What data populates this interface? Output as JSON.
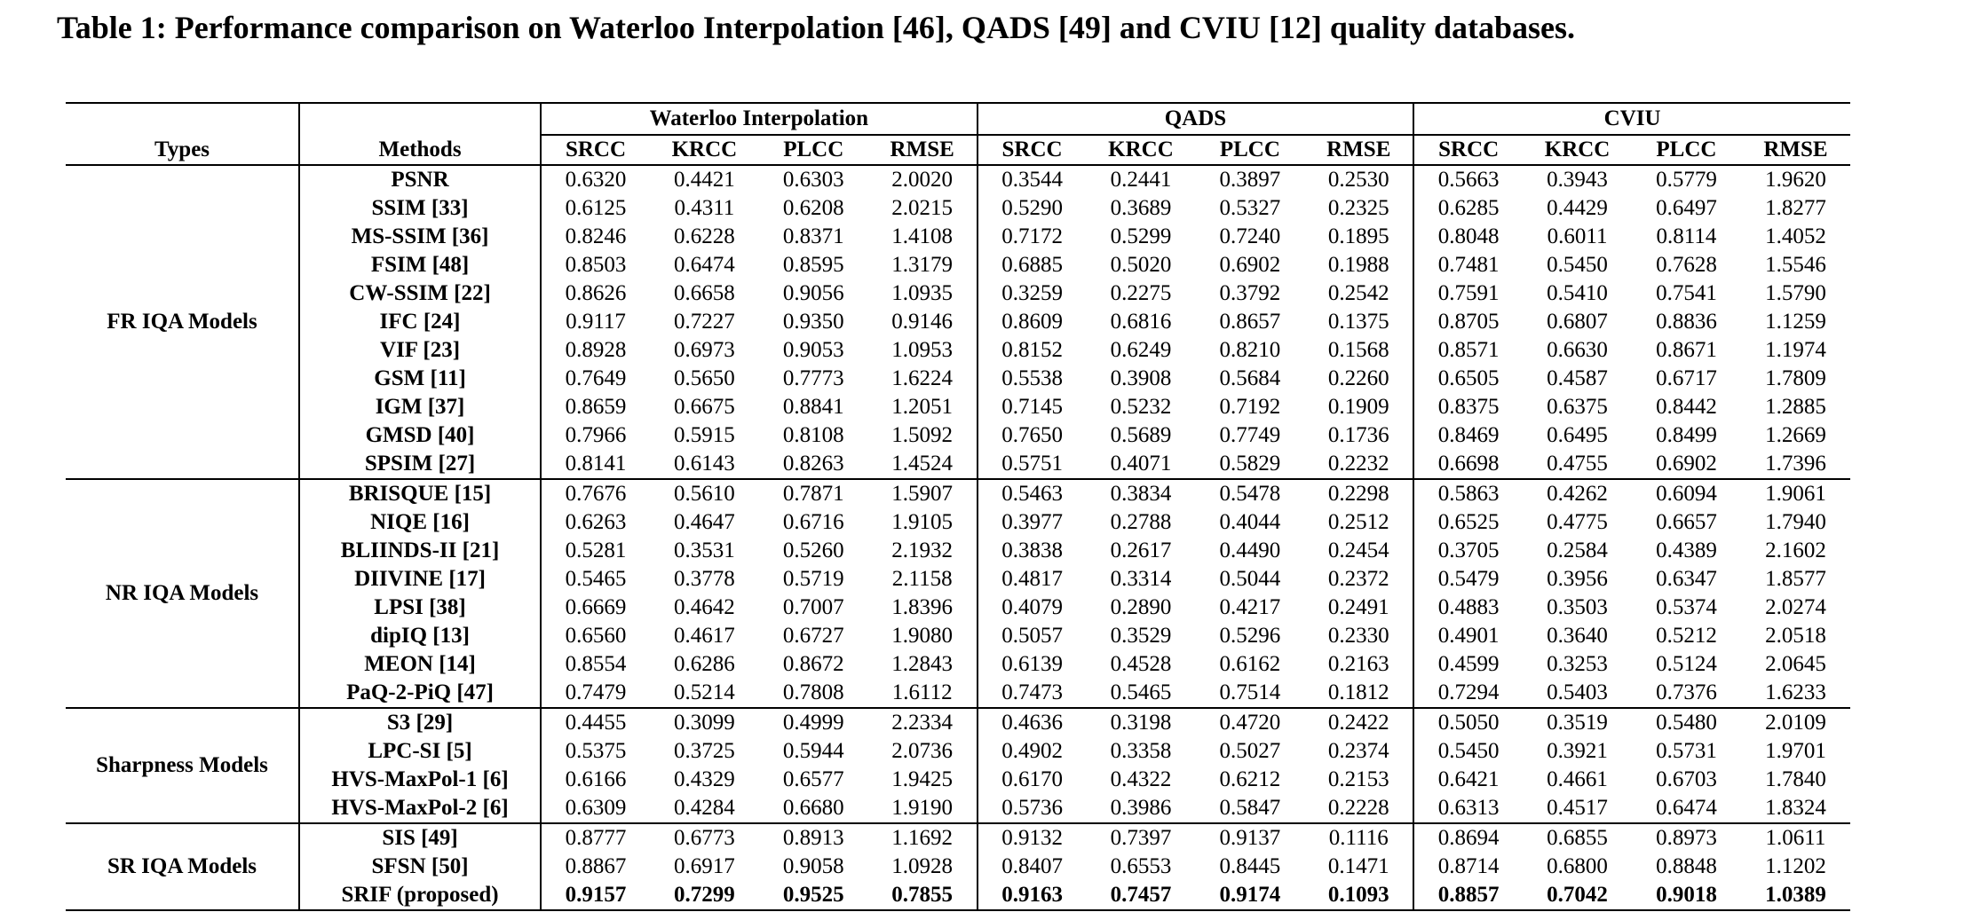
{
  "caption": "Table 1: Performance comparison on Waterloo Interpolation [46], QADS [49] and CVIU [12] quality databases.",
  "headers": {
    "types": "Types",
    "methods": "Methods",
    "groups": [
      "Waterloo Interpolation",
      "QADS",
      "CVIU"
    ],
    "metrics": [
      "SRCC",
      "KRCC",
      "PLCC",
      "RMSE"
    ]
  },
  "groups": [
    {
      "type": "FR IQA Models",
      "rows": [
        {
          "method": "PSNR",
          "values": [
            "0.6320",
            "0.4421",
            "0.6303",
            "2.0020",
            "0.3544",
            "0.2441",
            "0.3897",
            "0.2530",
            "0.5663",
            "0.3943",
            "0.5779",
            "1.9620"
          ]
        },
        {
          "method": "SSIM [33]",
          "values": [
            "0.6125",
            "0.4311",
            "0.6208",
            "2.0215",
            "0.5290",
            "0.3689",
            "0.5327",
            "0.2325",
            "0.6285",
            "0.4429",
            "0.6497",
            "1.8277"
          ]
        },
        {
          "method": "MS-SSIM [36]",
          "values": [
            "0.8246",
            "0.6228",
            "0.8371",
            "1.4108",
            "0.7172",
            "0.5299",
            "0.7240",
            "0.1895",
            "0.8048",
            "0.6011",
            "0.8114",
            "1.4052"
          ]
        },
        {
          "method": "FSIM [48]",
          "values": [
            "0.8503",
            "0.6474",
            "0.8595",
            "1.3179",
            "0.6885",
            "0.5020",
            "0.6902",
            "0.1988",
            "0.7481",
            "0.5450",
            "0.7628",
            "1.5546"
          ]
        },
        {
          "method": "CW-SSIM [22]",
          "values": [
            "0.8626",
            "0.6658",
            "0.9056",
            "1.0935",
            "0.3259",
            "0.2275",
            "0.3792",
            "0.2542",
            "0.7591",
            "0.5410",
            "0.7541",
            "1.5790"
          ]
        },
        {
          "method": "IFC [24]",
          "values": [
            "0.9117",
            "0.7227",
            "0.9350",
            "0.9146",
            "0.8609",
            "0.6816",
            "0.8657",
            "0.1375",
            "0.8705",
            "0.6807",
            "0.8836",
            "1.1259"
          ]
        },
        {
          "method": "VIF [23]",
          "values": [
            "0.8928",
            "0.6973",
            "0.9053",
            "1.0953",
            "0.8152",
            "0.6249",
            "0.8210",
            "0.1568",
            "0.8571",
            "0.6630",
            "0.8671",
            "1.1974"
          ]
        },
        {
          "method": "GSM [11]",
          "values": [
            "0.7649",
            "0.5650",
            "0.7773",
            "1.6224",
            "0.5538",
            "0.3908",
            "0.5684",
            "0.2260",
            "0.6505",
            "0.4587",
            "0.6717",
            "1.7809"
          ]
        },
        {
          "method": "IGM [37]",
          "values": [
            "0.8659",
            "0.6675",
            "0.8841",
            "1.2051",
            "0.7145",
            "0.5232",
            "0.7192",
            "0.1909",
            "0.8375",
            "0.6375",
            "0.8442",
            "1.2885"
          ]
        },
        {
          "method": "GMSD [40]",
          "values": [
            "0.7966",
            "0.5915",
            "0.8108",
            "1.5092",
            "0.7650",
            "0.5689",
            "0.7749",
            "0.1736",
            "0.8469",
            "0.6495",
            "0.8499",
            "1.2669"
          ]
        },
        {
          "method": "SPSIM [27]",
          "values": [
            "0.8141",
            "0.6143",
            "0.8263",
            "1.4524",
            "0.5751",
            "0.4071",
            "0.5829",
            "0.2232",
            "0.6698",
            "0.4755",
            "0.6902",
            "1.7396"
          ]
        }
      ]
    },
    {
      "type": "NR IQA Models",
      "rows": [
        {
          "method": "BRISQUE [15]",
          "values": [
            "0.7676",
            "0.5610",
            "0.7871",
            "1.5907",
            "0.5463",
            "0.3834",
            "0.5478",
            "0.2298",
            "0.5863",
            "0.4262",
            "0.6094",
            "1.9061"
          ]
        },
        {
          "method": "NIQE [16]",
          "values": [
            "0.6263",
            "0.4647",
            "0.6716",
            "1.9105",
            "0.3977",
            "0.2788",
            "0.4044",
            "0.2512",
            "0.6525",
            "0.4775",
            "0.6657",
            "1.7940"
          ]
        },
        {
          "method": "BLIINDS-II [21]",
          "values": [
            "0.5281",
            "0.3531",
            "0.5260",
            "2.1932",
            "0.3838",
            "0.2617",
            "0.4490",
            "0.2454",
            "0.3705",
            "0.2584",
            "0.4389",
            "2.1602"
          ]
        },
        {
          "method": "DIIVINE [17]",
          "values": [
            "0.5465",
            "0.3778",
            "0.5719",
            "2.1158",
            "0.4817",
            "0.3314",
            "0.5044",
            "0.2372",
            "0.5479",
            "0.3956",
            "0.6347",
            "1.8577"
          ]
        },
        {
          "method": "LPSI [38]",
          "values": [
            "0.6669",
            "0.4642",
            "0.7007",
            "1.8396",
            "0.4079",
            "0.2890",
            "0.4217",
            "0.2491",
            "0.4883",
            "0.3503",
            "0.5374",
            "2.0274"
          ]
        },
        {
          "method": "dipIQ [13]",
          "values": [
            "0.6560",
            "0.4617",
            "0.6727",
            "1.9080",
            "0.5057",
            "0.3529",
            "0.5296",
            "0.2330",
            "0.4901",
            "0.3640",
            "0.5212",
            "2.0518"
          ]
        },
        {
          "method": "MEON [14]",
          "values": [
            "0.8554",
            "0.6286",
            "0.8672",
            "1.2843",
            "0.6139",
            "0.4528",
            "0.6162",
            "0.2163",
            "0.4599",
            "0.3253",
            "0.5124",
            "2.0645"
          ]
        },
        {
          "method": "PaQ-2-PiQ [47]",
          "values": [
            "0.7479",
            "0.5214",
            "0.7808",
            "1.6112",
            "0.7473",
            "0.5465",
            "0.7514",
            "0.1812",
            "0.7294",
            "0.5403",
            "0.7376",
            "1.6233"
          ]
        }
      ]
    },
    {
      "type": "Sharpness Models",
      "rows": [
        {
          "method": "S3 [29]",
          "values": [
            "0.4455",
            "0.3099",
            "0.4999",
            "2.2334",
            "0.4636",
            "0.3198",
            "0.4720",
            "0.2422",
            "0.5050",
            "0.3519",
            "0.5480",
            "2.0109"
          ]
        },
        {
          "method": "LPC-SI [5]",
          "values": [
            "0.5375",
            "0.3725",
            "0.5944",
            "2.0736",
            "0.4902",
            "0.3358",
            "0.5027",
            "0.2374",
            "0.5450",
            "0.3921",
            "0.5731",
            "1.9701"
          ]
        },
        {
          "method": "HVS-MaxPol-1 [6]",
          "values": [
            "0.6166",
            "0.4329",
            "0.6577",
            "1.9425",
            "0.6170",
            "0.4322",
            "0.6212",
            "0.2153",
            "0.6421",
            "0.4661",
            "0.6703",
            "1.7840"
          ]
        },
        {
          "method": "HVS-MaxPol-2 [6]",
          "values": [
            "0.6309",
            "0.4284",
            "0.6680",
            "1.9190",
            "0.5736",
            "0.3986",
            "0.5847",
            "0.2228",
            "0.6313",
            "0.4517",
            "0.6474",
            "1.8324"
          ]
        }
      ]
    },
    {
      "type": "SR IQA Models",
      "rows": [
        {
          "method": "SIS [49]",
          "values": [
            "0.8777",
            "0.6773",
            "0.8913",
            "1.1692",
            "0.9132",
            "0.7397",
            "0.9137",
            "0.1116",
            "0.8694",
            "0.6855",
            "0.8973",
            "1.0611"
          ]
        },
        {
          "method": "SFSN [50]",
          "values": [
            "0.8867",
            "0.6917",
            "0.9058",
            "1.0928",
            "0.8407",
            "0.6553",
            "0.8445",
            "0.1471",
            "0.8714",
            "0.6800",
            "0.8848",
            "1.1202"
          ]
        },
        {
          "method": "SRIF (proposed)",
          "values": [
            "0.9157",
            "0.7299",
            "0.9525",
            "0.7855",
            "0.9163",
            "0.7457",
            "0.9174",
            "0.1093",
            "0.8857",
            "0.7042",
            "0.9018",
            "1.0389"
          ]
        }
      ]
    }
  ],
  "bold_row_method": "SRIF (proposed)"
}
